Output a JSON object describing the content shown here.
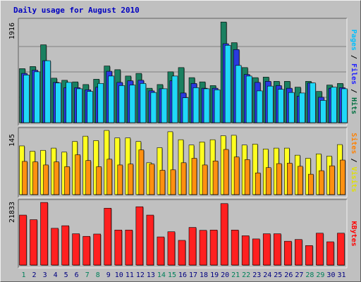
{
  "chart_data": {
    "type": "bar",
    "title": "Daily usage for August 2010",
    "days": [
      "1",
      "2",
      "3",
      "4",
      "5",
      "6",
      "7",
      "8",
      "9",
      "10",
      "11",
      "12",
      "13",
      "14",
      "15",
      "16",
      "17",
      "18",
      "19",
      "20",
      "21",
      "22",
      "23",
      "24",
      "25",
      "26",
      "27",
      "28",
      "29",
      "30",
      "31"
    ],
    "weekend_days": [
      "1",
      "7",
      "8",
      "14",
      "15",
      "21",
      "22",
      "28",
      "29"
    ],
    "panels": [
      {
        "id": "traffic",
        "max_label": "1916",
        "ymax": 1916,
        "axis_title_parts": [
          {
            "text": "Pages",
            "color": "#00c0ff"
          },
          {
            "text": " / ",
            "color": "#000000"
          },
          {
            "text": "Files",
            "color": "#2020ff"
          },
          {
            "text": " / ",
            "color": "#000000"
          },
          {
            "text": "Hits",
            "color": "#007040"
          }
        ],
        "series": [
          {
            "name": "Hits",
            "color": "#1a8060",
            "values": [
              1020,
              1060,
              1470,
              840,
              800,
              770,
              720,
              820,
              1070,
              1000,
              880,
              930,
              650,
              720,
              960,
              1040,
              850,
              770,
              700,
              1900,
              1510,
              1040,
              850,
              860,
              780,
              780,
              670,
              780,
              590,
              710,
              740
            ]
          },
          {
            "name": "Files",
            "color": "#2a3ae0",
            "values": [
              930,
              990,
              1170,
              760,
              660,
              660,
              620,
              670,
              970,
              760,
              790,
              800,
              600,
              640,
              790,
              560,
              740,
              650,
              650,
              1490,
              1380,
              910,
              760,
              780,
              700,
              650,
              500,
              750,
              480,
              650,
              660
            ]
          },
          {
            "name": "Pages",
            "color": "#20d8f8",
            "values": [
              900,
              960,
              1170,
              750,
              760,
              640,
              590,
              740,
              880,
              700,
              710,
              740,
              570,
              640,
              880,
              470,
              660,
              640,
              620,
              1460,
              1080,
              880,
              600,
              690,
              630,
              570,
              560,
              750,
              420,
              670,
              640
            ]
          }
        ]
      },
      {
        "id": "visitors",
        "max_label": "145",
        "ymax": 145,
        "axis_title_parts": [
          {
            "text": "Sites",
            "color": "#ff8000"
          },
          {
            "text": " / ",
            "color": "#000000"
          },
          {
            "text": "Visits",
            "color": "#e0e000"
          }
        ],
        "series": [
          {
            "name": "Visits",
            "color": "#ffff20",
            "values": [
              110,
              98,
              100,
              105,
              96,
              120,
              132,
              122,
              145,
              128,
              128,
              120,
              72,
              106,
              142,
              124,
              112,
              119,
              124,
              133,
              134,
              112,
              114,
              103,
              105,
              105,
              89,
              82,
              92,
              87,
              113
            ]
          },
          {
            "name": "Sites",
            "color": "#ff9010",
            "values": [
              75,
              74,
              67,
              74,
              63,
              90,
              77,
              63,
              80,
              67,
              69,
              101,
              69,
              55,
              56,
              72,
              82,
              67,
              76,
              102,
              85,
              79,
              49,
              61,
              70,
              71,
              64,
              46,
              54,
              65,
              78
            ]
          }
        ]
      },
      {
        "id": "kbytes",
        "max_label": "21833",
        "ymax": 21833,
        "axis_title_parts": [
          {
            "text": "KBytes",
            "color": "#ff0000"
          }
        ],
        "series": [
          {
            "name": "KBytes",
            "color": "#ff2020",
            "values": [
              17400,
              15800,
              21800,
              12800,
              13700,
              10900,
              10000,
              10800,
              19800,
              12200,
              12200,
              20300,
              17400,
              9800,
              11600,
              8600,
              13100,
              12100,
              12200,
              21400,
              12200,
              10200,
              9100,
              10900,
              10900,
              8300,
              8900,
              6800,
              11100,
              8100,
              11100
            ]
          }
        ]
      }
    ]
  }
}
